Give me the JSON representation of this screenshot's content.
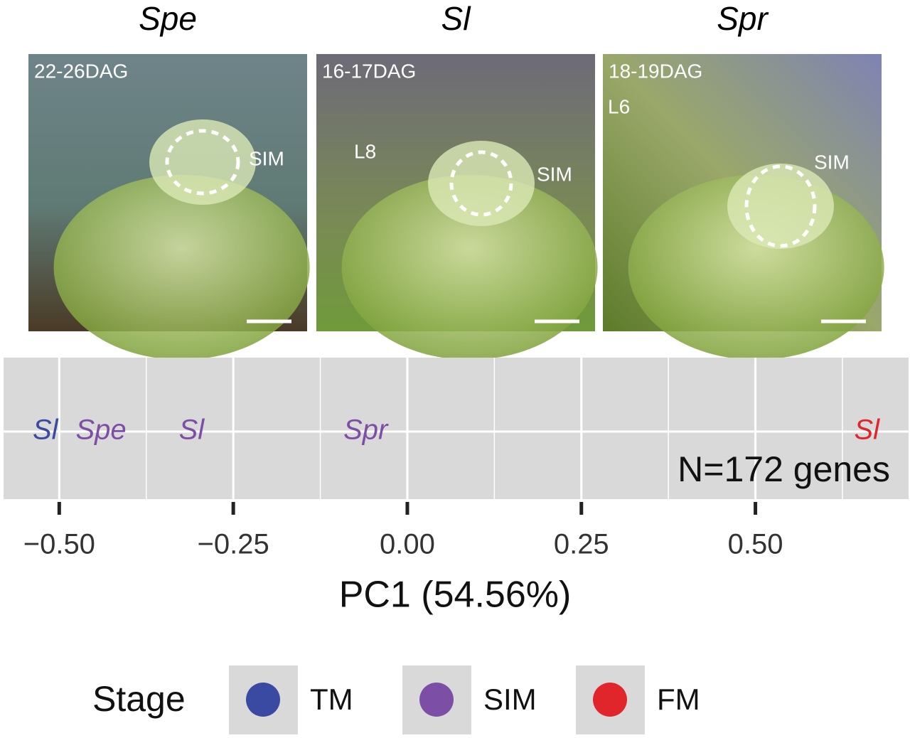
{
  "panels": [
    {
      "title": "Spe",
      "stage": "22-26DAG",
      "labels": [
        "SIM"
      ]
    },
    {
      "title": "Sl",
      "stage": "16-17DAG",
      "labels": [
        "L8",
        "SIM"
      ]
    },
    {
      "title": "Spr",
      "stage": "18-19DAG",
      "labels": [
        "L6",
        "SIM"
      ]
    }
  ],
  "chart_data": {
    "type": "scatter",
    "x_label": "PC1 (54.56%)",
    "annotation": "N=172 genes",
    "legend_title": "Stage",
    "xlim": [
      -0.58,
      0.72
    ],
    "xticks": [
      {
        "value": -0.5,
        "label": "−0.50"
      },
      {
        "value": -0.25,
        "label": "−0.25"
      },
      {
        "value": 0,
        "label": "0.00"
      },
      0.25,
      {
        "value": 0.5,
        "label": "0.50"
      }
    ],
    "x_minor_ticks": [
      -0.375,
      -0.125,
      0.125,
      0.375,
      0.625
    ],
    "grid": true,
    "series": [
      {
        "name": "TM",
        "color": "#3a4aa3",
        "labels": [
          "Sl"
        ],
        "x": [
          -0.52
        ]
      },
      {
        "name": "SIM",
        "color": "#7d4ea6",
        "labels": [
          "Spe",
          "Sl",
          "Spr"
        ],
        "x": [
          -0.44,
          -0.31,
          -0.06
        ]
      },
      {
        "name": "FM",
        "color": "#e0262a",
        "labels": [
          "Sl"
        ],
        "x": [
          0.66
        ]
      }
    ]
  }
}
